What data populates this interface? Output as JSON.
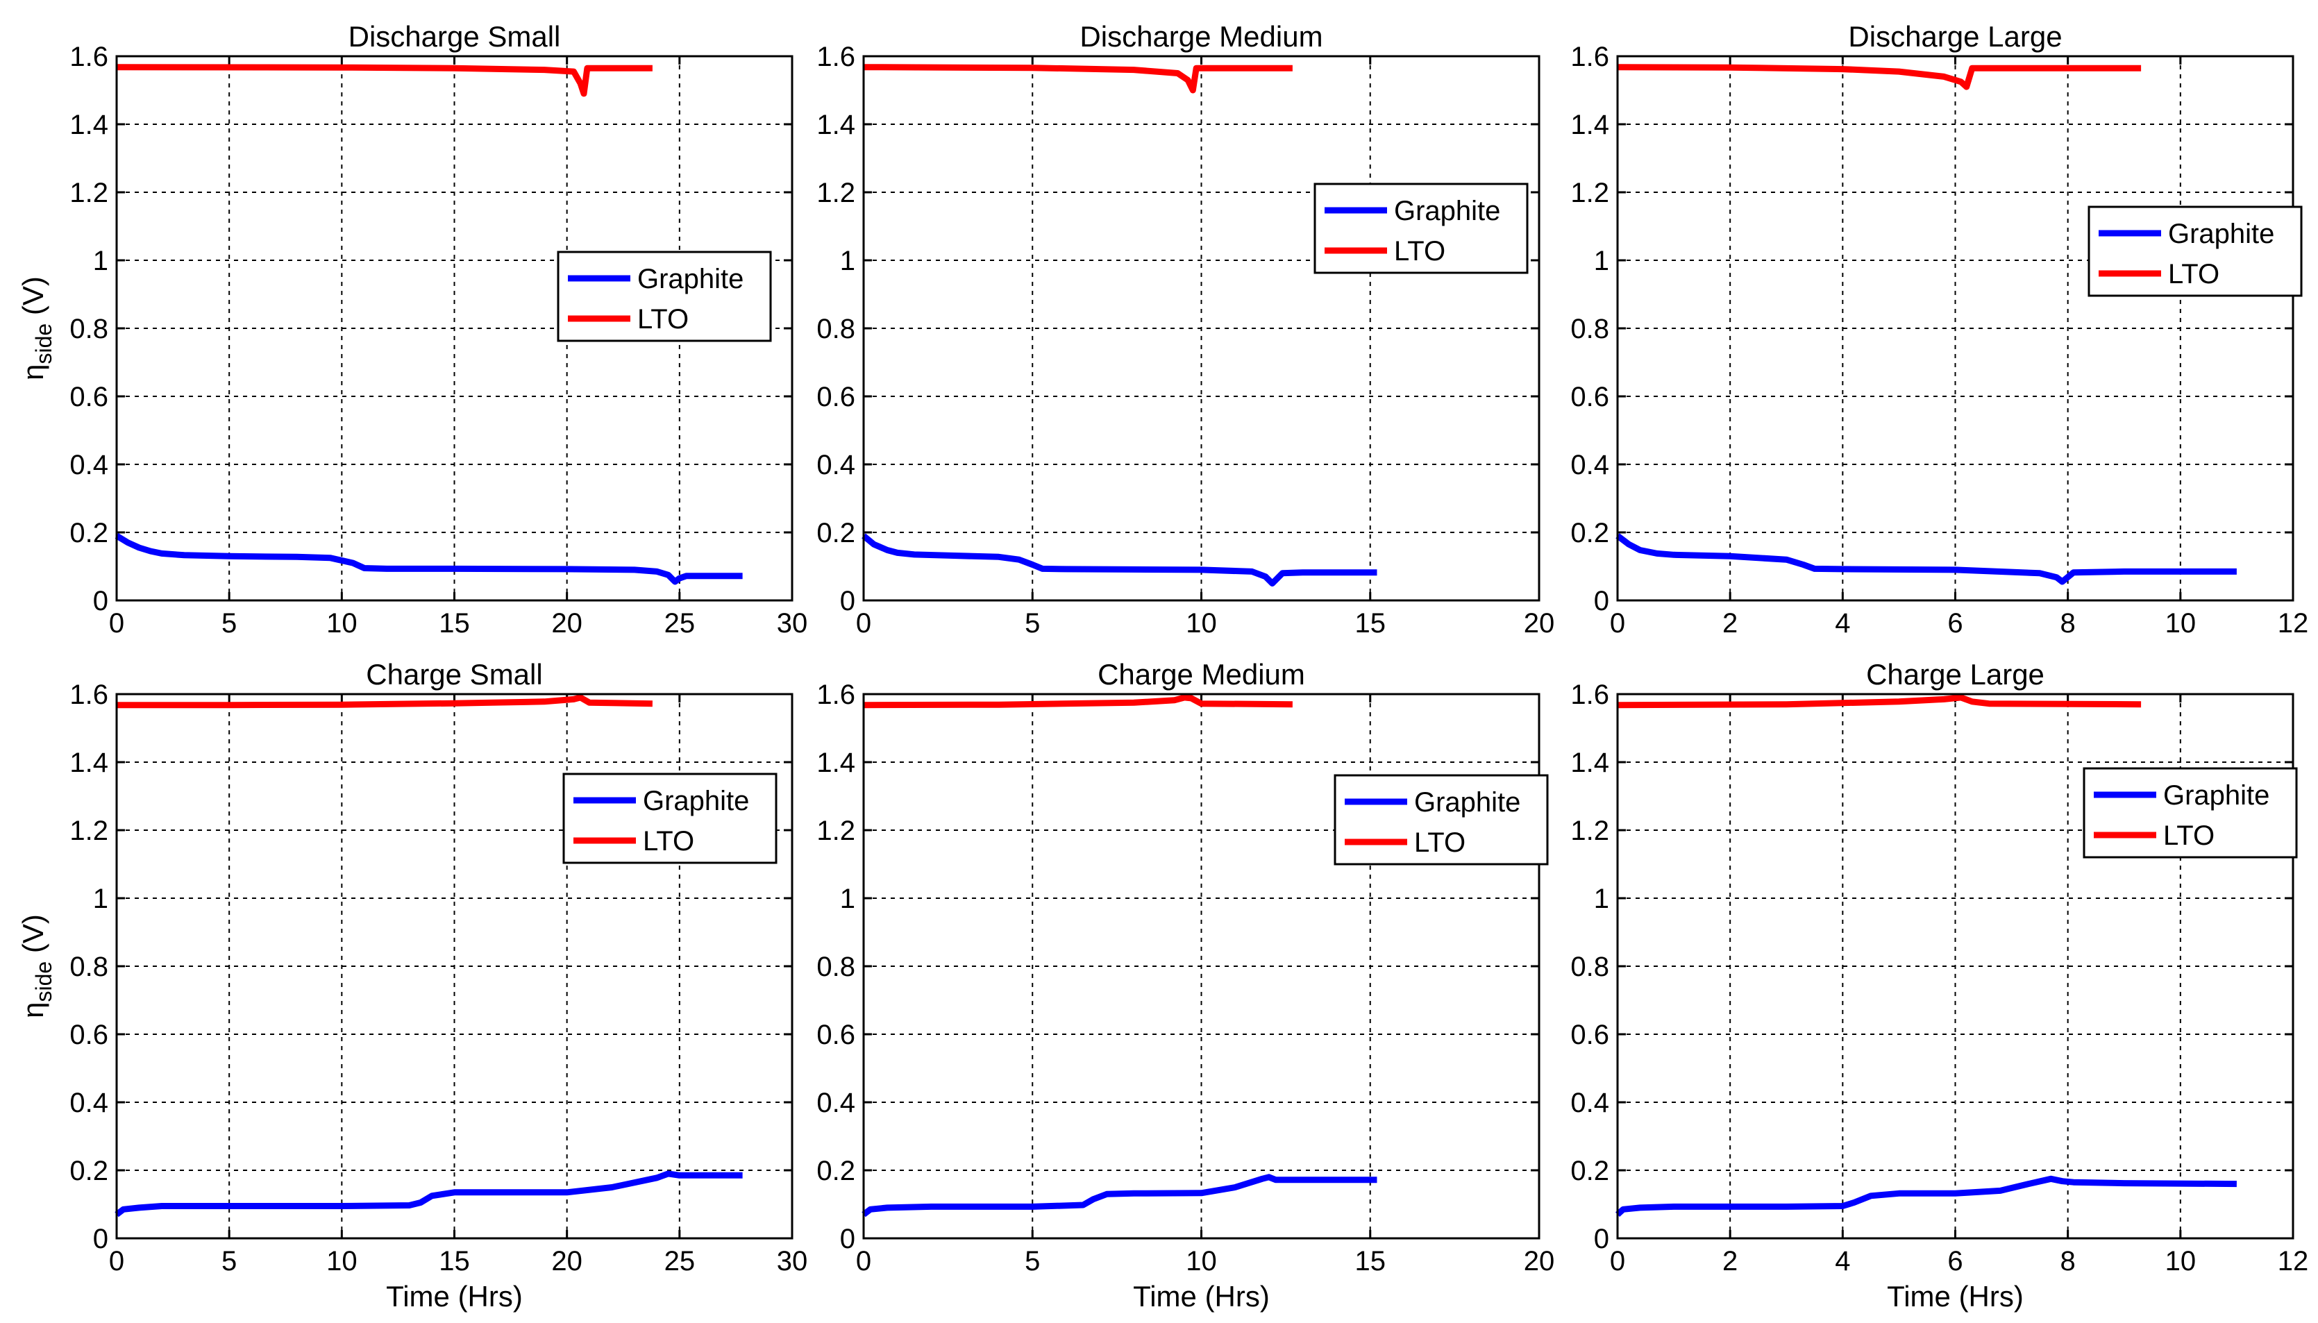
{
  "colors": {
    "Graphite": "#0000ff",
    "LTO": "#ff0000"
  },
  "chart_data": [
    {
      "type": "line",
      "title": "Discharge Small",
      "xlabel": "",
      "ylabel": "η_side (V)",
      "xlim": [
        0,
        30
      ],
      "ylim": [
        0,
        1.6
      ],
      "xticks": [
        0,
        5,
        10,
        15,
        20,
        25,
        30
      ],
      "yticks": [
        0,
        0.2,
        0.4,
        0.6,
        0.8,
        1,
        1.2,
        1.4,
        1.6
      ],
      "grid": true,
      "legend_position": "right-middle",
      "series": [
        {
          "name": "Graphite",
          "x": [
            0,
            0.5,
            1,
            1.5,
            2,
            3,
            5,
            8,
            9.5,
            10.5,
            11,
            12,
            15,
            20,
            23,
            24,
            24.5,
            24.8,
            25,
            25.3,
            26,
            27,
            27.8
          ],
          "y": [
            0.19,
            0.17,
            0.155,
            0.145,
            0.138,
            0.133,
            0.13,
            0.128,
            0.125,
            0.11,
            0.095,
            0.093,
            0.093,
            0.092,
            0.09,
            0.085,
            0.075,
            0.055,
            0.065,
            0.072,
            0.072,
            0.072,
            0.072
          ]
        },
        {
          "name": "LTO",
          "x": [
            0,
            10,
            15,
            19,
            20.3,
            20.6,
            20.75,
            20.9,
            21.2,
            23.8
          ],
          "y": [
            1.568,
            1.567,
            1.565,
            1.56,
            1.555,
            1.52,
            1.49,
            1.565,
            1.565,
            1.565
          ]
        }
      ]
    },
    {
      "type": "line",
      "title": "Discharge Medium",
      "xlabel": "",
      "ylabel": "",
      "xlim": [
        0,
        20
      ],
      "ylim": [
        0,
        1.6
      ],
      "xticks": [
        0,
        5,
        10,
        15,
        20
      ],
      "yticks": [
        0,
        0.2,
        0.4,
        0.6,
        0.8,
        1,
        1.2,
        1.4,
        1.6
      ],
      "grid": true,
      "legend_position": "top-right",
      "series": [
        {
          "name": "Graphite",
          "x": [
            0,
            0.3,
            0.7,
            1,
            1.5,
            2.5,
            4,
            4.6,
            5,
            5.3,
            6,
            8,
            10,
            11.5,
            11.9,
            12.1,
            12.4,
            13,
            15.2
          ],
          "y": [
            0.19,
            0.165,
            0.148,
            0.14,
            0.135,
            0.132,
            0.128,
            0.12,
            0.105,
            0.093,
            0.092,
            0.091,
            0.09,
            0.085,
            0.07,
            0.05,
            0.08,
            0.082,
            0.082
          ]
        },
        {
          "name": "LTO",
          "x": [
            0,
            5,
            8,
            9.3,
            9.6,
            9.75,
            9.85,
            10,
            12.7
          ],
          "y": [
            1.568,
            1.566,
            1.56,
            1.55,
            1.53,
            1.5,
            1.565,
            1.565,
            1.565
          ]
        }
      ]
    },
    {
      "type": "line",
      "title": "Discharge Large",
      "xlabel": "",
      "ylabel": "",
      "xlim": [
        0,
        12
      ],
      "ylim": [
        0,
        1.6
      ],
      "xticks": [
        0,
        2,
        4,
        6,
        8,
        10,
        12
      ],
      "yticks": [
        0,
        0.2,
        0.4,
        0.6,
        0.8,
        1,
        1.2,
        1.4,
        1.6
      ],
      "grid": true,
      "legend_position": "top-right",
      "series": [
        {
          "name": "Graphite",
          "x": [
            0,
            0.2,
            0.4,
            0.7,
            1,
            2,
            3,
            3.3,
            3.5,
            4,
            6,
            7.5,
            7.8,
            7.9,
            8.1,
            9,
            11
          ],
          "y": [
            0.19,
            0.165,
            0.148,
            0.138,
            0.134,
            0.13,
            0.12,
            0.105,
            0.093,
            0.092,
            0.09,
            0.08,
            0.068,
            0.055,
            0.082,
            0.085,
            0.085
          ]
        },
        {
          "name": "LTO",
          "x": [
            0,
            2,
            4,
            5,
            5.8,
            6.1,
            6.2,
            6.3,
            6.5,
            9.3
          ],
          "y": [
            1.568,
            1.567,
            1.562,
            1.555,
            1.54,
            1.525,
            1.51,
            1.565,
            1.565,
            1.565
          ]
        }
      ]
    },
    {
      "type": "line",
      "title": "Charge Small",
      "xlabel": "Time (Hrs)",
      "ylabel": "η_side (V)",
      "xlim": [
        0,
        30
      ],
      "ylim": [
        0,
        1.6
      ],
      "xticks": [
        0,
        5,
        10,
        15,
        20,
        25,
        30
      ],
      "yticks": [
        0,
        0.2,
        0.4,
        0.6,
        0.8,
        1,
        1.2,
        1.4,
        1.6
      ],
      "grid": true,
      "legend_position": "top-right",
      "series": [
        {
          "name": "Graphite",
          "x": [
            0,
            0.3,
            1,
            2,
            5,
            10,
            13,
            13.5,
            14,
            15,
            20,
            22,
            24,
            24.5,
            25,
            26,
            27.8
          ],
          "y": [
            0.07,
            0.085,
            0.09,
            0.095,
            0.095,
            0.095,
            0.097,
            0.105,
            0.125,
            0.135,
            0.135,
            0.15,
            0.178,
            0.19,
            0.185,
            0.185,
            0.185
          ]
        },
        {
          "name": "LTO",
          "x": [
            0,
            5,
            10,
            15,
            19,
            20.3,
            20.6,
            21,
            23.8
          ],
          "y": [
            1.568,
            1.568,
            1.569,
            1.573,
            1.578,
            1.585,
            1.59,
            1.575,
            1.572
          ]
        }
      ]
    },
    {
      "type": "line",
      "title": "Charge Medium",
      "xlabel": "Time (Hrs)",
      "ylabel": "",
      "xlim": [
        0,
        20
      ],
      "ylim": [
        0,
        1.6
      ],
      "xticks": [
        0,
        5,
        10,
        15,
        20
      ],
      "yticks": [
        0,
        0.2,
        0.4,
        0.6,
        0.8,
        1,
        1.2,
        1.4,
        1.6
      ],
      "grid": true,
      "legend_position": "top-right",
      "series": [
        {
          "name": "Graphite",
          "x": [
            0,
            0.2,
            0.7,
            2,
            5,
            6.5,
            6.8,
            7.2,
            8,
            10,
            11,
            11.8,
            12,
            12.2,
            13,
            15.2
          ],
          "y": [
            0.07,
            0.085,
            0.09,
            0.093,
            0.093,
            0.098,
            0.115,
            0.13,
            0.132,
            0.133,
            0.15,
            0.175,
            0.18,
            0.172,
            0.172,
            0.172
          ]
        },
        {
          "name": "LTO",
          "x": [
            0,
            4,
            8,
            9.2,
            9.5,
            9.7,
            10,
            12.7
          ],
          "y": [
            1.568,
            1.569,
            1.575,
            1.582,
            1.59,
            1.588,
            1.572,
            1.57
          ]
        }
      ]
    },
    {
      "type": "line",
      "title": "Charge Large",
      "xlabel": "Time (Hrs)",
      "ylabel": "",
      "xlim": [
        0,
        12
      ],
      "ylim": [
        0,
        1.6
      ],
      "xticks": [
        0,
        2,
        4,
        6,
        8,
        10,
        12
      ],
      "yticks": [
        0,
        0.2,
        0.4,
        0.6,
        0.8,
        1,
        1.2,
        1.4,
        1.6
      ],
      "grid": true,
      "legend_position": "top-right",
      "series": [
        {
          "name": "Graphite",
          "x": [
            0,
            0.1,
            0.4,
            1,
            3,
            4,
            4.2,
            4.5,
            5,
            6,
            6.8,
            7.3,
            7.7,
            7.9,
            8.1,
            9,
            11
          ],
          "y": [
            0.07,
            0.085,
            0.09,
            0.093,
            0.093,
            0.095,
            0.105,
            0.125,
            0.132,
            0.132,
            0.14,
            0.16,
            0.175,
            0.168,
            0.165,
            0.162,
            0.16
          ]
        },
        {
          "name": "LTO",
          "x": [
            0,
            3,
            5,
            5.8,
            6.1,
            6.3,
            6.6,
            9.3
          ],
          "y": [
            1.568,
            1.57,
            1.578,
            1.585,
            1.59,
            1.578,
            1.572,
            1.57
          ]
        }
      ]
    }
  ]
}
